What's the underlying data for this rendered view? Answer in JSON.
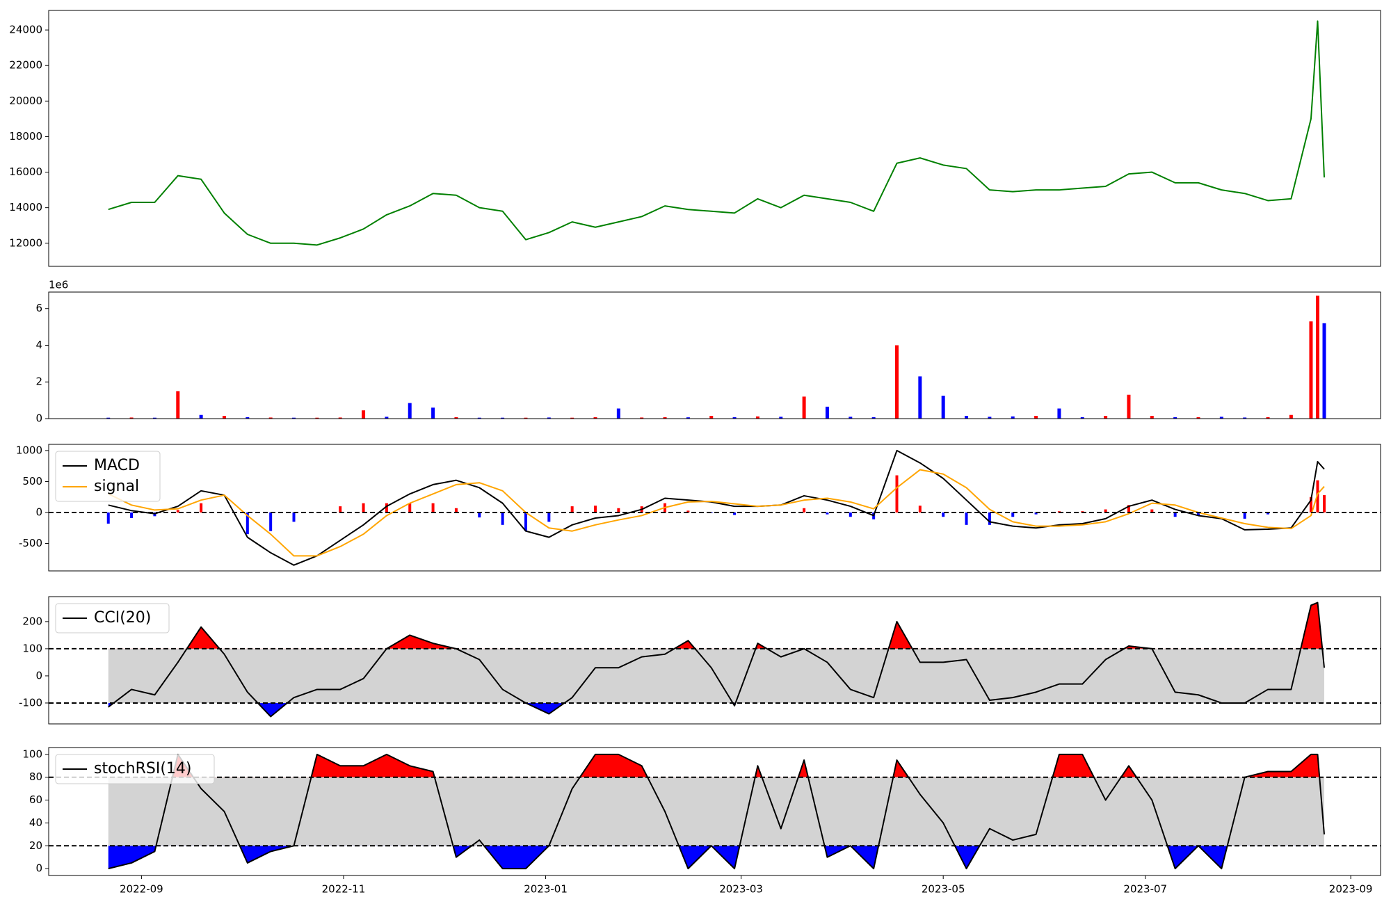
{
  "chart_data": [
    {
      "type": "line",
      "color": "green",
      "x": [
        19226,
        19233,
        19240,
        19247,
        19254,
        19261,
        19268,
        19275,
        19282,
        19289,
        19296,
        19303,
        19310,
        19317,
        19324,
        19331,
        19338,
        19345,
        19352,
        19359,
        19366,
        19373,
        19380,
        19387,
        19394,
        19401,
        19408,
        19415,
        19422,
        19429,
        19436,
        19443,
        19450,
        19457,
        19464,
        19471,
        19478,
        19485,
        19492,
        19499,
        19506,
        19513,
        19520,
        19527,
        19534,
        19541,
        19548,
        19555,
        19562,
        19569,
        19576,
        19583,
        19589,
        19591,
        19593
      ],
      "values": [
        13900,
        14300,
        14300,
        15800,
        15600,
        13700,
        12500,
        12000,
        12000,
        11900,
        12300,
        12800,
        13600,
        14100,
        14800,
        14700,
        14000,
        13800,
        12200,
        12600,
        13200,
        12900,
        13200,
        13500,
        14100,
        13900,
        13800,
        13700,
        14500,
        14000,
        14700,
        14500,
        14300,
        13800,
        16500,
        16800,
        16400,
        16200,
        15000,
        14900,
        15000,
        15000,
        15100,
        15200,
        15900,
        16000,
        15400,
        15400,
        15000,
        14800,
        14400,
        14500,
        19000,
        24500,
        15700
      ],
      "xlim": [
        19208,
        19610
      ],
      "ylim": [
        10700,
        25100
      ],
      "yticks": [
        12000,
        14000,
        16000,
        18000,
        20000,
        22000,
        24000
      ]
    },
    {
      "type": "bar",
      "offset_text": "1e6",
      "x": [
        19226,
        19233,
        19240,
        19247,
        19254,
        19261,
        19268,
        19275,
        19282,
        19289,
        19296,
        19303,
        19310,
        19317,
        19324,
        19331,
        19338,
        19345,
        19352,
        19359,
        19366,
        19373,
        19380,
        19387,
        19394,
        19401,
        19408,
        19415,
        19422,
        19429,
        19436,
        19443,
        19450,
        19457,
        19464,
        19471,
        19478,
        19485,
        19492,
        19499,
        19506,
        19513,
        19520,
        19527,
        19534,
        19541,
        19548,
        19555,
        19562,
        19569,
        19576,
        19583,
        19589,
        19591,
        19593
      ],
      "values": [
        50000,
        60000,
        50000,
        1500000,
        200000,
        150000,
        80000,
        60000,
        50000,
        50000,
        60000,
        450000,
        100000,
        850000,
        600000,
        80000,
        50000,
        50000,
        50000,
        60000,
        50000,
        80000,
        550000,
        60000,
        80000,
        70000,
        150000,
        80000,
        120000,
        100000,
        1200000,
        650000,
        100000,
        80000,
        4000000,
        2300000,
        1250000,
        150000,
        100000,
        120000,
        150000,
        550000,
        80000,
        150000,
        1300000,
        150000,
        80000,
        80000,
        100000,
        60000,
        80000,
        200000,
        5300000,
        6700000,
        5200000
      ],
      "colors": [
        "blue",
        "red",
        "blue",
        "red",
        "blue",
        "red",
        "blue",
        "red",
        "blue",
        "red",
        "red",
        "red",
        "blue",
        "blue",
        "blue",
        "red",
        "blue",
        "blue",
        "red",
        "blue",
        "red",
        "red",
        "blue",
        "red",
        "red",
        "blue",
        "red",
        "blue",
        "red",
        "blue",
        "red",
        "blue",
        "blue",
        "blue",
        "red",
        "blue",
        "blue",
        "blue",
        "blue",
        "blue",
        "red",
        "blue",
        "blue",
        "red",
        "red",
        "red",
        "blue",
        "red",
        "blue",
        "blue",
        "red",
        "red",
        "red",
        "red",
        "blue"
      ],
      "xlim": [
        19208,
        19610
      ],
      "ylim": [
        0,
        6900000
      ],
      "yticks": [
        0,
        {
          "value": 2000000,
          "label": "2"
        },
        {
          "value": 4000000,
          "label": "4"
        },
        {
          "value": 6000000,
          "label": "6"
        }
      ]
    },
    {
      "type": "line",
      "legend": "upper left",
      "hlines": [
        0
      ],
      "x": [
        19226,
        19233,
        19240,
        19247,
        19254,
        19261,
        19268,
        19275,
        19282,
        19289,
        19296,
        19303,
        19310,
        19317,
        19324,
        19331,
        19338,
        19345,
        19352,
        19359,
        19366,
        19373,
        19380,
        19387,
        19394,
        19401,
        19408,
        19415,
        19422,
        19429,
        19436,
        19443,
        19450,
        19457,
        19464,
        19471,
        19478,
        19485,
        19492,
        19499,
        19506,
        19513,
        19520,
        19527,
        19534,
        19541,
        19548,
        19555,
        19562,
        19569,
        19576,
        19583,
        19589,
        19591,
        19593
      ],
      "series": [
        {
          "name": "MACD",
          "color": "black",
          "values": [
            120,
            30,
            -20,
            100,
            350,
            280,
            -400,
            -650,
            -850,
            -700,
            -450,
            -200,
            100,
            300,
            450,
            520,
            400,
            150,
            -300,
            -400,
            -200,
            -90,
            -50,
            50,
            230,
            200,
            170,
            100,
            100,
            120,
            270,
            200,
            100,
            -50,
            1000,
            800,
            550,
            200,
            -150,
            -220,
            -250,
            -200,
            -180,
            -100,
            100,
            200,
            50,
            -50,
            -100,
            -280,
            -270,
            -250,
            200,
            820,
            700
          ]
        },
        {
          "name": "signal",
          "color": "orange",
          "values": [
            300,
            120,
            40,
            60,
            200,
            280,
            -50,
            -350,
            -700,
            -700,
            -550,
            -350,
            -50,
            150,
            300,
            450,
            480,
            350,
            0,
            -250,
            -300,
            -200,
            -120,
            -50,
            80,
            170,
            180,
            140,
            100,
            120,
            200,
            230,
            170,
            60,
            400,
            690,
            620,
            400,
            50,
            -150,
            -220,
            -220,
            -200,
            -150,
            -20,
            150,
            120,
            0,
            -90,
            -180,
            -240,
            -260,
            -50,
            300,
            420
          ]
        }
      ],
      "histogram": {
        "pos_color": "red",
        "neg_color": "blue",
        "values": [
          -180,
          -90,
          -60,
          40,
          150,
          0,
          -350,
          -300,
          -150,
          0,
          100,
          150,
          150,
          150,
          150,
          70,
          -80,
          -200,
          -300,
          -150,
          100,
          110,
          70,
          100,
          150,
          30,
          -10,
          -40,
          0,
          0,
          70,
          -30,
          -70,
          -110,
          600,
          110,
          -70,
          -200,
          -200,
          -70,
          -30,
          20,
          20,
          50,
          120,
          50,
          -70,
          -50,
          -10,
          -100,
          -30,
          10,
          250,
          520,
          280
        ]
      },
      "xlim": [
        19208,
        19610
      ],
      "ylim": [
        -943,
        1100
      ],
      "yticks": [
        -500,
        0,
        500,
        1000
      ]
    },
    {
      "type": "line",
      "legend": "upper left",
      "hlines": [
        -100,
        100
      ],
      "band_color": "#d3d3d3",
      "above_color": "red",
      "below_color": "blue",
      "x": [
        19226,
        19233,
        19240,
        19247,
        19254,
        19261,
        19268,
        19275,
        19282,
        19289,
        19296,
        19303,
        19310,
        19317,
        19324,
        19331,
        19338,
        19345,
        19352,
        19359,
        19366,
        19373,
        19380,
        19387,
        19394,
        19401,
        19408,
        19415,
        19422,
        19429,
        19436,
        19443,
        19450,
        19457,
        19464,
        19471,
        19478,
        19485,
        19492,
        19499,
        19506,
        19513,
        19520,
        19527,
        19534,
        19541,
        19548,
        19555,
        19562,
        19569,
        19576,
        19583,
        19589,
        19591,
        19593
      ],
      "series": [
        {
          "name": "CCI(20)",
          "color": "black",
          "values": [
            -115,
            -50,
            -70,
            50,
            180,
            80,
            -60,
            -150,
            -80,
            -50,
            -50,
            -10,
            100,
            150,
            120,
            100,
            60,
            -50,
            -100,
            -140,
            -80,
            30,
            30,
            70,
            80,
            130,
            30,
            -110,
            120,
            70,
            100,
            50,
            -50,
            -80,
            200,
            50,
            50,
            60,
            -90,
            -80,
            -60,
            -30,
            -30,
            60,
            110,
            100,
            -60,
            -70,
            -100,
            -100,
            -50,
            -50,
            260,
            270,
            30
          ]
        }
      ],
      "xlim": [
        19208,
        19610
      ],
      "ylim": [
        -177,
        292
      ],
      "yticks": [
        -100,
        0,
        100,
        200
      ]
    },
    {
      "type": "line",
      "legend": "upper left",
      "hlines": [
        20,
        80
      ],
      "band_color": "#d3d3d3",
      "above_color": "red",
      "below_color": "blue",
      "x": [
        19226,
        19233,
        19240,
        19247,
        19254,
        19261,
        19268,
        19275,
        19282,
        19289,
        19296,
        19303,
        19310,
        19317,
        19324,
        19331,
        19338,
        19345,
        19352,
        19359,
        19366,
        19373,
        19380,
        19387,
        19394,
        19401,
        19408,
        19415,
        19422,
        19429,
        19436,
        19443,
        19450,
        19457,
        19464,
        19471,
        19478,
        19485,
        19492,
        19499,
        19506,
        19513,
        19520,
        19527,
        19534,
        19541,
        19548,
        19555,
        19562,
        19569,
        19576,
        19583,
        19589,
        19591,
        19593
      ],
      "series": [
        {
          "name": "stochRSI(14)",
          "color": "black",
          "values": [
            0,
            5,
            15,
            100,
            70,
            50,
            5,
            15,
            20,
            100,
            90,
            90,
            100,
            90,
            85,
            10,
            25,
            0,
            0,
            20,
            70,
            100,
            100,
            90,
            50,
            0,
            20,
            0,
            90,
            35,
            95,
            10,
            20,
            0,
            95,
            65,
            40,
            0,
            35,
            25,
            30,
            100,
            100,
            60,
            90,
            60,
            0,
            20,
            0,
            80,
            85,
            85,
            100,
            100,
            30
          ]
        }
      ],
      "xlim": [
        19208,
        19610
      ],
      "ylim": [
        -6,
        106
      ],
      "yticks": [
        0,
        20,
        40,
        60,
        80,
        100
      ],
      "xticks": [
        {
          "value": 19236,
          "label": "2022-09"
        },
        {
          "value": 19297,
          "label": "2022-11"
        },
        {
          "value": 19358,
          "label": "2023-01"
        },
        {
          "value": 19417,
          "label": "2023-03"
        },
        {
          "value": 19478,
          "label": "2023-05"
        },
        {
          "value": 19539,
          "label": "2023-07"
        },
        {
          "value": 19601,
          "label": "2023-09"
        }
      ]
    }
  ]
}
